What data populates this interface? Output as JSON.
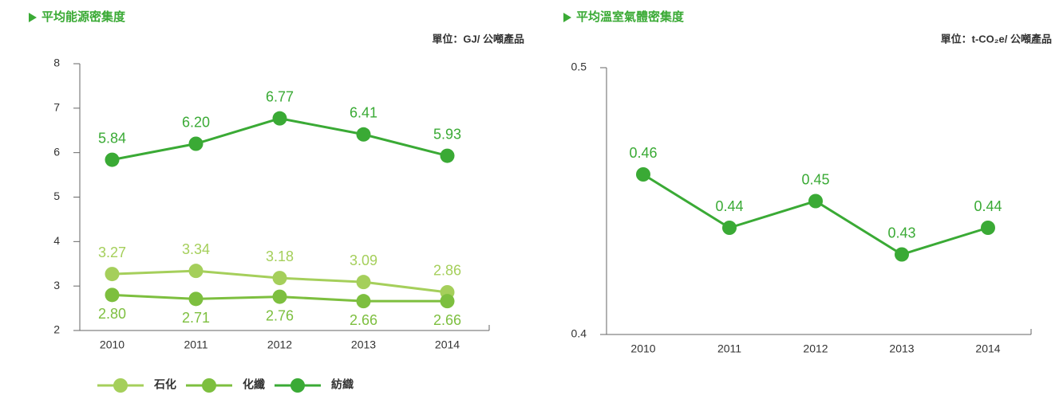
{
  "chart_data": [
    {
      "type": "line",
      "title": "平均能源密集度",
      "subtitle": "單位：GJ/ 公噸產品",
      "categories": [
        "2010",
        "2011",
        "2012",
        "2013",
        "2014"
      ],
      "ylim": [
        2,
        8
      ],
      "yticks": [
        2,
        3,
        4,
        5,
        6,
        7,
        8
      ],
      "series": [
        {
          "name": "石化",
          "color": "#a5cf5b",
          "values": [
            3.27,
            3.34,
            3.18,
            3.09,
            2.86
          ],
          "value_labels": [
            "3.27",
            "3.34",
            "3.18",
            "3.09",
            "2.86"
          ]
        },
        {
          "name": "化纖",
          "color": "#7dbf3f",
          "values": [
            2.8,
            2.71,
            2.76,
            2.66,
            2.66
          ],
          "value_labels": [
            "2.80",
            "2.71",
            "2.76",
            "2.66",
            "2.66"
          ]
        },
        {
          "name": "紡織",
          "color": "#3aaa35",
          "values": [
            5.84,
            6.2,
            6.77,
            6.41,
            5.93
          ],
          "value_labels": [
            "5.84",
            "6.20",
            "6.77",
            "6.41",
            "5.93"
          ]
        }
      ]
    },
    {
      "type": "line",
      "title": "平均溫室氣體密集度",
      "subtitle": "單位：t-CO₂e/ 公噸產品",
      "categories": [
        "2010",
        "2011",
        "2012",
        "2013",
        "2014"
      ],
      "ylim": [
        0.4,
        0.5
      ],
      "yticks": [
        0.4,
        0.5
      ],
      "color": "#3aaa35",
      "values": [
        0.46,
        0.44,
        0.45,
        0.43,
        0.44
      ]
    }
  ]
}
